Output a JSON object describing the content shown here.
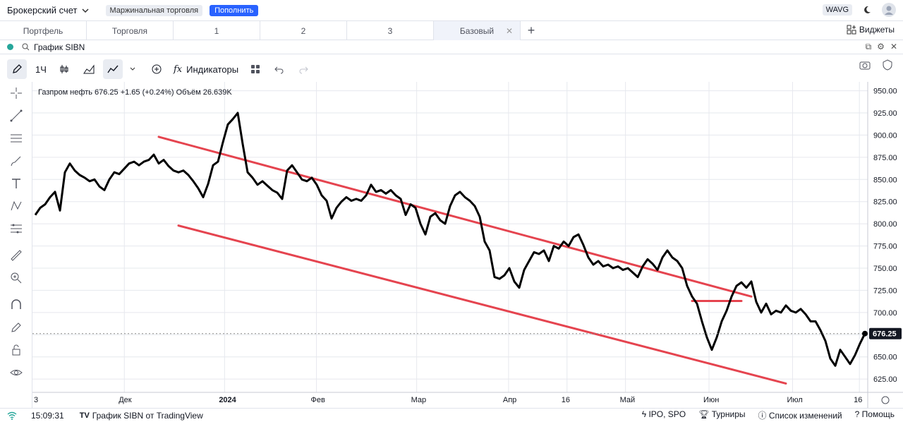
{
  "header": {
    "account": "Брокерский счет",
    "margin_pill": "Маржинальная торговля",
    "topup_button": "Пополнить",
    "wavg": "WAVG"
  },
  "tabs": [
    {
      "label": "Портфель"
    },
    {
      "label": "Торговля"
    },
    {
      "label": "1"
    },
    {
      "label": "2"
    },
    {
      "label": "3"
    },
    {
      "label": "Базовый"
    }
  ],
  "widgets_label": "Виджеты",
  "chart_header": {
    "title": "График SIBN"
  },
  "toolbar": {
    "interval": "1Ч",
    "indicators": "Индикаторы"
  },
  "status": {
    "time": "15:09:31",
    "source": "График SIBN от TradingView",
    "ipo": "IPO, SPO",
    "tournaments": "Турниры",
    "changelog": "Список изменений",
    "help": "Помощь"
  },
  "legend": {
    "name": "Газпром нефть",
    "price": "676.25",
    "change": "+1.65 (+0.24%)",
    "volume_label": "Объём",
    "volume": "26.639K"
  },
  "chart_data": {
    "type": "line",
    "ylim": [
      610,
      960
    ],
    "y_ticks": [
      950,
      925,
      900,
      875,
      850,
      825,
      800,
      775,
      750,
      725,
      700,
      675,
      650,
      625
    ],
    "y_tick_labels": [
      "950.00",
      "925.00",
      "900.00",
      "875.00",
      "850.00",
      "825.00",
      "800.00",
      "775.00",
      "750.00",
      "725.00",
      "700.00",
      "675.00",
      "650.00",
      "625.00"
    ],
    "x_tick_labels": [
      "3",
      "Дек",
      "2024",
      "Фев",
      "Мар",
      "Апр",
      "16",
      "Май",
      "Июн",
      "Июл",
      "16"
    ],
    "x_tick_bold": [
      false,
      false,
      true,
      false,
      false,
      false,
      false,
      false,
      false,
      false,
      false
    ],
    "last_price": 676.25,
    "last_price_label": "676.25",
    "grid": true,
    "series": [
      {
        "values": [
          810,
          818,
          822,
          830,
          836,
          815,
          858,
          868,
          860,
          855,
          852,
          848,
          850,
          842,
          838,
          850,
          858,
          856,
          862,
          868,
          870,
          866,
          870,
          872,
          878,
          868,
          872,
          865,
          860,
          858,
          860,
          855,
          848,
          840,
          830,
          845,
          866,
          870,
          892,
          912,
          918,
          925,
          890,
          858,
          852,
          844,
          848,
          843,
          838,
          835,
          828,
          860,
          866,
          858,
          850,
          848,
          852,
          844,
          832,
          826,
          806,
          818,
          825,
          830,
          826,
          828,
          826,
          832,
          844,
          836,
          838,
          834,
          838,
          832,
          828,
          810,
          822,
          818,
          800,
          788,
          808,
          812,
          804,
          800,
          820,
          832,
          836,
          830,
          826,
          820,
          808,
          780,
          770,
          740,
          738,
          742,
          750,
          735,
          728,
          748,
          758,
          768,
          766,
          770,
          758,
          775,
          772,
          780,
          775,
          785,
          788,
          776,
          762,
          754,
          758,
          752,
          754,
          750,
          752,
          748,
          750,
          745,
          740,
          752,
          760,
          755,
          748,
          762,
          770,
          762,
          758,
          750,
          730,
          718,
          710,
          690,
          672,
          658,
          672,
          690,
          702,
          718,
          730,
          734,
          728,
          735,
          712,
          700,
          710,
          698,
          702,
          700,
          708,
          702,
          700,
          704,
          698,
          690,
          690,
          680,
          668,
          648,
          640,
          658,
          650,
          642,
          652,
          665,
          676.25
        ]
      }
    ],
    "channel_lines": [
      {
        "from": {
          "x": 25,
          "y": 898
        },
        "to": {
          "x": 145,
          "y": 718
        }
      },
      {
        "from": {
          "x": 29,
          "y": 798
        },
        "to": {
          "x": 152,
          "y": 620
        }
      },
      {
        "from": {
          "x": 133,
          "y": 713
        },
        "to": {
          "x": 143,
          "y": 713
        }
      }
    ]
  },
  "colors": {
    "price_line": "#000000",
    "trend_line": "#e5444f",
    "accent": "#2962ff"
  }
}
